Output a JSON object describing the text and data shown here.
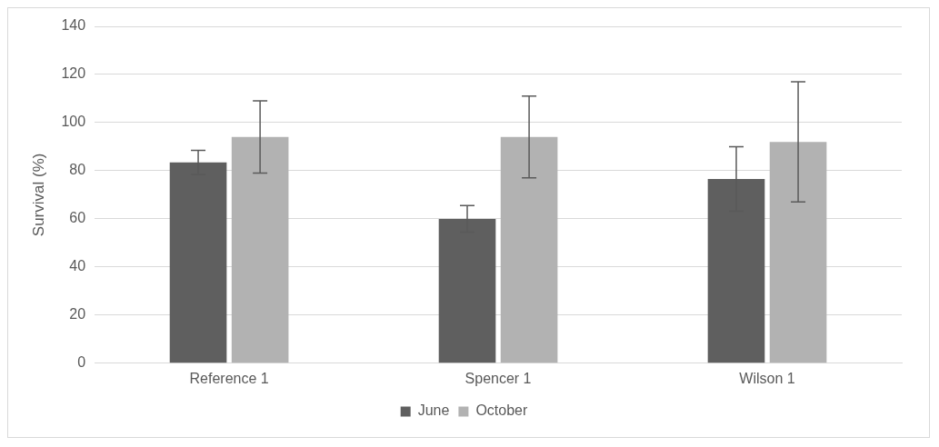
{
  "chart_data": {
    "type": "bar",
    "ylabel": "Survival (%)",
    "categories": [
      "Reference 1",
      "Spencer 1",
      "Wilson 1"
    ],
    "series": [
      {
        "name": "June",
        "color": "#5f5f5f",
        "values": [
          83.5,
          60,
          76.6
        ],
        "errors": [
          5,
          5.5,
          13.4
        ]
      },
      {
        "name": "October",
        "color": "#b2b2b2",
        "values": [
          94,
          94,
          92
        ],
        "errors": [
          15,
          17,
          25
        ]
      }
    ],
    "ylim": [
      0,
      140
    ],
    "yticks": [
      0,
      20,
      40,
      60,
      80,
      100,
      120,
      140
    ],
    "grid": "y",
    "legend": "bottom"
  }
}
